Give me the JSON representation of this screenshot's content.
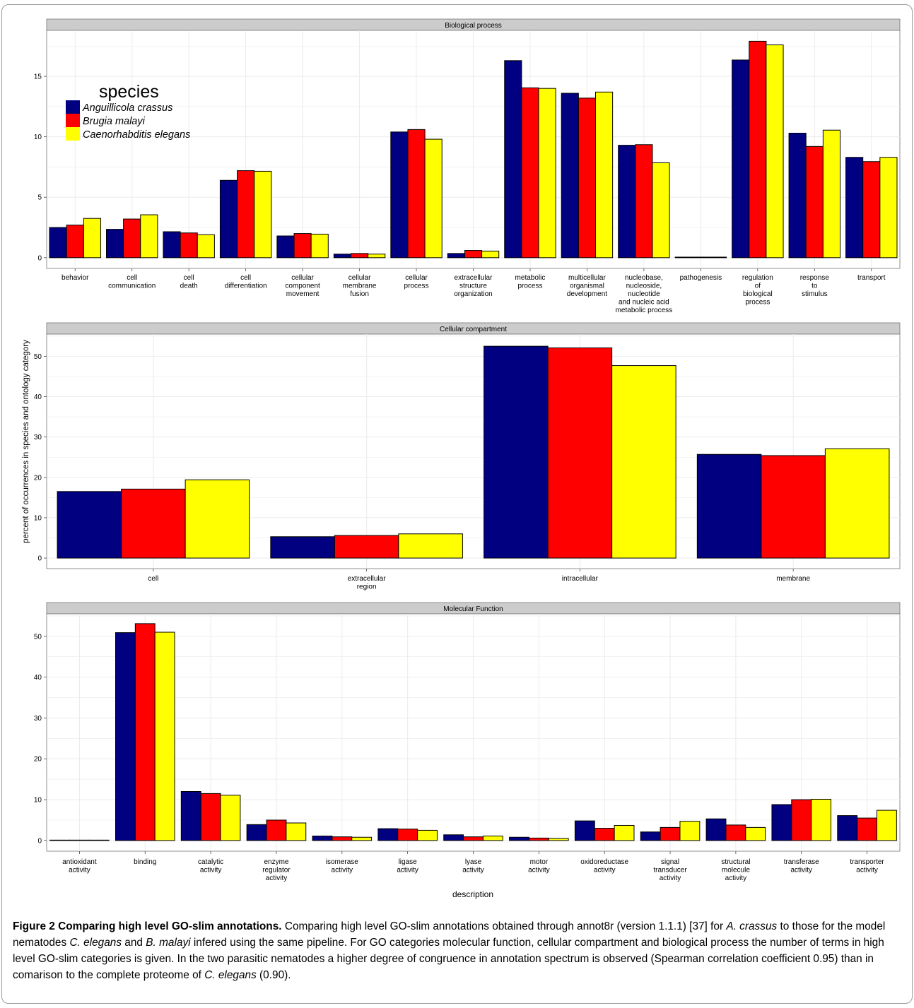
{
  "colors": {
    "Anguillicola crassus": "#000080",
    "Brugia malayi": "#ff0000",
    "Caenorhabditis elegans": "#ffff00",
    "strip": "#cccccc",
    "grid": "#ebebeb"
  },
  "legend": {
    "title": "species",
    "items": [
      "Anguillicola crassus",
      "Brugia malayi",
      "Caenorhabditis elegans"
    ]
  },
  "ylabel": "percent of occurrences in species and ontology category",
  "xlabel": "description",
  "chart_data": [
    {
      "type": "bar",
      "title": "Biological process",
      "ylim": [
        0,
        18.8
      ],
      "yticks": [
        0,
        5,
        10,
        15
      ],
      "categories": [
        "behavior",
        "cell\ncommunication",
        "cell\ndeath",
        "cell\ndifferentiation",
        "cellular\ncomponent\nmovement",
        "cellular\nmembrane\nfusion",
        "cellular\nprocess",
        "extracellular\nstructure\norganization",
        "metabolic\nprocess",
        "multicellular\norganismal\ndevelopment",
        "nucleobase,\nnucleoside,\nnucleotide\nand nucleic acid\nmetabolic process",
        "pathogenesis",
        "regulation\nof\nbiological\nprocess",
        "response\nto\nstimulus",
        "transport"
      ],
      "series": [
        {
          "name": "Anguillicola crassus",
          "values": [
            2.5,
            2.35,
            2.15,
            6.4,
            1.8,
            0.3,
            10.4,
            0.35,
            16.3,
            13.6,
            9.3,
            0.05,
            16.35,
            10.3,
            8.3
          ]
        },
        {
          "name": "Brugia malayi",
          "values": [
            2.7,
            3.2,
            2.05,
            7.2,
            2.0,
            0.35,
            10.6,
            0.6,
            14.05,
            13.2,
            9.35,
            0.05,
            17.9,
            9.2,
            7.95
          ]
        },
        {
          "name": "Caenorhabditis elegans",
          "values": [
            3.25,
            3.55,
            1.9,
            7.15,
            1.95,
            0.3,
            9.8,
            0.55,
            14.0,
            13.7,
            7.85,
            0.05,
            17.6,
            10.55,
            8.3
          ]
        }
      ]
    },
    {
      "type": "bar",
      "title": "Cellular compartment",
      "ylim": [
        0,
        55.5
      ],
      "yticks": [
        0,
        10,
        20,
        30,
        40,
        50
      ],
      "categories": [
        "cell",
        "extracellular\nregion",
        "intracellular",
        "membrane"
      ],
      "series": [
        {
          "name": "Anguillicola crassus",
          "values": [
            16.5,
            5.3,
            52.5,
            25.7
          ]
        },
        {
          "name": "Brugia malayi",
          "values": [
            17.1,
            5.6,
            52.1,
            25.4
          ]
        },
        {
          "name": "Caenorhabditis elegans",
          "values": [
            19.4,
            6.0,
            47.7,
            27.1
          ]
        }
      ]
    },
    {
      "type": "bar",
      "title": "Molecular Function",
      "ylim": [
        0,
        55.5
      ],
      "yticks": [
        0,
        10,
        20,
        30,
        40,
        50
      ],
      "categories": [
        "antioxidant\nactivity",
        "binding",
        "catalytic\nactivity",
        "enzyme\nregulator\nactivity",
        "isomerase\nactivity",
        "ligase\nactivity",
        "lyase\nactivity",
        "motor\nactivity",
        "oxidoreductase\nactivity",
        "signal\ntransducer\nactivity",
        "structural\nmolecule\nactivity",
        "transferase\nactivity",
        "transporter\nactivity"
      ],
      "series": [
        {
          "name": "Anguillicola crassus",
          "values": [
            0.1,
            50.9,
            12.0,
            3.9,
            1.1,
            2.9,
            1.4,
            0.8,
            4.8,
            2.1,
            5.3,
            8.8,
            6.1
          ]
        },
        {
          "name": "Brugia malayi",
          "values": [
            0.1,
            53.1,
            11.5,
            5.0,
            0.9,
            2.8,
            0.9,
            0.6,
            3.0,
            3.2,
            3.8,
            10.0,
            5.5
          ]
        },
        {
          "name": "Caenorhabditis elegans",
          "values": [
            0.1,
            51.0,
            11.1,
            4.3,
            0.8,
            2.5,
            1.1,
            0.5,
            3.7,
            4.7,
            3.2,
            10.1,
            7.4
          ]
        }
      ]
    }
  ],
  "caption": {
    "title": "Figure 2 Comparing high level GO-slim annotations.",
    "text_1": " Comparing high level GO-slim annotations obtained through annot8r (version 1.1.1) [37] for ",
    "sp_a": "A. crassus",
    "text_2": " to those for the model nematodes ",
    "sp_c": "C. elegans",
    "text_3": " and ",
    "sp_b": "B. malayi",
    "text_4": " infered using the same pipeline. For GO categories molecular function, cellular compartment and biological process the number of terms in high level GO-slim categories is given. In the two parasitic nematodes a higher degree of congruence in annotation spectrum is observed (Spearman correlation coefficient 0.95) than in comarison to the complete proteome of ",
    "sp_c2": "C. elegans",
    "text_5": " (0.90)."
  }
}
